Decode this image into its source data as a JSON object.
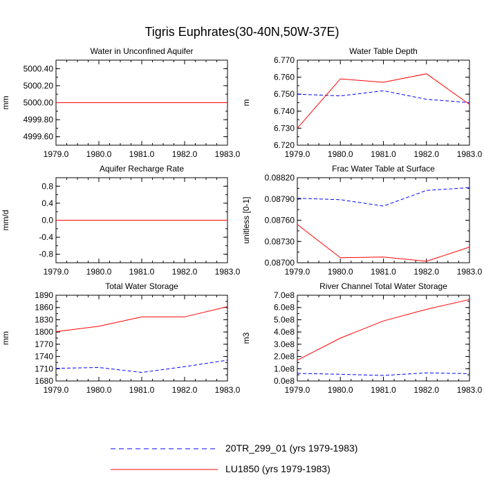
{
  "title": "Tigris Euphrates(30-40N,50W-37E)",
  "colors": {
    "series_20TR": "#0000ff",
    "series_LU1850": "#ff0000",
    "axis": "#000000"
  },
  "legend": [
    {
      "label": "20TR_299_01 (yrs 1979-1983)",
      "style": "dashed",
      "color": "#0000ff"
    },
    {
      "label": "LU1850 (yrs 1979-1983)",
      "style": "solid",
      "color": "#ff0000"
    }
  ],
  "chart_data": [
    {
      "type": "line",
      "title": "Water in Unconfined Aquifer",
      "ylabel": "mm",
      "xlabel": "",
      "x": [
        1979,
        1980,
        1981,
        1982,
        1983
      ],
      "xlim": [
        1979,
        1983
      ],
      "xticks": [
        "1979.0",
        "1980.0",
        "1981.0",
        "1982.0",
        "1983.0"
      ],
      "ylim": [
        4999.5,
        5000.5
      ],
      "yticks": [
        4999.6,
        4999.8,
        5000.0,
        5000.2,
        5000.4
      ],
      "ytick_labels": [
        "4999.60",
        "4999.80",
        "5000.00",
        "5000.20",
        "5000.40"
      ],
      "series": [
        {
          "name": "20TR_299_01 (yrs 1979-1983)",
          "style": "dashed",
          "values": [
            5000.0,
            5000.0,
            5000.0,
            5000.0,
            5000.0
          ]
        },
        {
          "name": "LU1850 (yrs 1979-1983)",
          "style": "solid",
          "values": [
            5000.0,
            5000.0,
            5000.0,
            5000.0,
            5000.0
          ]
        }
      ]
    },
    {
      "type": "line",
      "title": "Water Table Depth",
      "ylabel": "m",
      "xlabel": "",
      "x": [
        1979,
        1980,
        1981,
        1982,
        1983
      ],
      "xlim": [
        1979,
        1983
      ],
      "xticks": [
        "1979.0",
        "1980.0",
        "1981.0",
        "1982.0",
        "1983.0"
      ],
      "ylim": [
        6.72,
        6.77
      ],
      "yticks": [
        6.72,
        6.73,
        6.74,
        6.75,
        6.76,
        6.77
      ],
      "ytick_labels": [
        "6.720",
        "6.730",
        "6.740",
        "6.750",
        "6.760",
        "6.770"
      ],
      "series": [
        {
          "name": "20TR_299_01 (yrs 1979-1983)",
          "style": "dashed",
          "values": [
            6.75,
            6.749,
            6.752,
            6.747,
            6.745
          ]
        },
        {
          "name": "LU1850 (yrs 1979-1983)",
          "style": "solid",
          "values": [
            6.73,
            6.759,
            6.757,
            6.762,
            6.744
          ]
        }
      ]
    },
    {
      "type": "line",
      "title": "Aquifer Recharge Rate",
      "ylabel": "mm/d",
      "xlabel": "",
      "x": [
        1979,
        1980,
        1981,
        1982,
        1983
      ],
      "xlim": [
        1979,
        1983
      ],
      "xticks": [
        "1979.0",
        "1980.0",
        "1981.0",
        "1982.0",
        "1983.0"
      ],
      "ylim": [
        -1.0,
        1.0
      ],
      "yticks": [
        -0.8,
        -0.4,
        0.0,
        0.4,
        0.8
      ],
      "ytick_labels": [
        "-0.8",
        "-0.4",
        "0.0",
        "0.4",
        "0.8"
      ],
      "series": [
        {
          "name": "20TR_299_01 (yrs 1979-1983)",
          "style": "dashed",
          "values": [
            0.0,
            0.0,
            0.0,
            0.0,
            0.0
          ]
        },
        {
          "name": "LU1850 (yrs 1979-1983)",
          "style": "solid",
          "values": [
            0.0,
            0.0,
            0.0,
            0.0,
            0.0
          ]
        }
      ]
    },
    {
      "type": "line",
      "title": "Frac Water Table at Surface",
      "ylabel": "unitless [0-1]",
      "xlabel": "",
      "x": [
        1979,
        1980,
        1981,
        1982,
        1983
      ],
      "xlim": [
        1979,
        1983
      ],
      "xticks": [
        "1979.0",
        "1980.0",
        "1981.0",
        "1982.0",
        "1983.0"
      ],
      "ylim": [
        0.087,
        0.0882
      ],
      "yticks": [
        0.087,
        0.0873,
        0.0876,
        0.0879,
        0.0882
      ],
      "ytick_labels": [
        "0.08700",
        "0.08730",
        "0.08760",
        "0.08790",
        "0.08820"
      ],
      "series": [
        {
          "name": "20TR_299_01 (yrs 1979-1983)",
          "style": "dashed",
          "values": [
            0.08791,
            0.08789,
            0.0878,
            0.08802,
            0.08806
          ]
        },
        {
          "name": "LU1850 (yrs 1979-1983)",
          "style": "solid",
          "values": [
            0.08754,
            0.08707,
            0.08708,
            0.08702,
            0.08722
          ]
        }
      ]
    },
    {
      "type": "line",
      "title": "Total Water Storage",
      "ylabel": "mm",
      "xlabel": "",
      "x": [
        1979,
        1980,
        1981,
        1982,
        1983
      ],
      "xlim": [
        1979,
        1983
      ],
      "xticks": [
        "1979.0",
        "1980.0",
        "1981.0",
        "1982.0",
        "1983.0"
      ],
      "ylim": [
        1680,
        1890
      ],
      "yticks": [
        1680,
        1710,
        1740,
        1770,
        1800,
        1830,
        1860,
        1890
      ],
      "ytick_labels": [
        "1680",
        "1710",
        "1740",
        "1770",
        "1800",
        "1830",
        "1860",
        "1890"
      ],
      "series": [
        {
          "name": "20TR_299_01 (yrs 1979-1983)",
          "style": "dashed",
          "values": [
            1711,
            1713,
            1701,
            1715,
            1731
          ]
        },
        {
          "name": "LU1850 (yrs 1979-1983)",
          "style": "solid",
          "values": [
            1801,
            1814,
            1837,
            1837,
            1862
          ]
        }
      ]
    },
    {
      "type": "line",
      "title": "River Channel Total Water Storage",
      "ylabel": "m3",
      "xlabel": "",
      "x": [
        1979,
        1980,
        1981,
        1982,
        1983
      ],
      "xlim": [
        1979,
        1983
      ],
      "xticks": [
        "1979.0",
        "1980.0",
        "1981.0",
        "1982.0",
        "1983.0"
      ],
      "ylim": [
        0,
        700000000
      ],
      "yticks": [
        0,
        100000000,
        200000000,
        300000000,
        400000000,
        500000000,
        600000000,
        700000000
      ],
      "ytick_labels": [
        "0.0e8",
        "1.0e8",
        "2.0e8",
        "3.0e8",
        "4.0e8",
        "5.0e8",
        "6.0e8",
        "7.0e8"
      ],
      "series": [
        {
          "name": "20TR_299_01 (yrs 1979-1983)",
          "style": "dashed",
          "values": [
            62000000,
            55000000,
            45000000,
            66000000,
            60000000
          ]
        },
        {
          "name": "LU1850 (yrs 1979-1983)",
          "style": "solid",
          "values": [
            170000000,
            350000000,
            490000000,
            585000000,
            665000000
          ]
        }
      ]
    }
  ]
}
